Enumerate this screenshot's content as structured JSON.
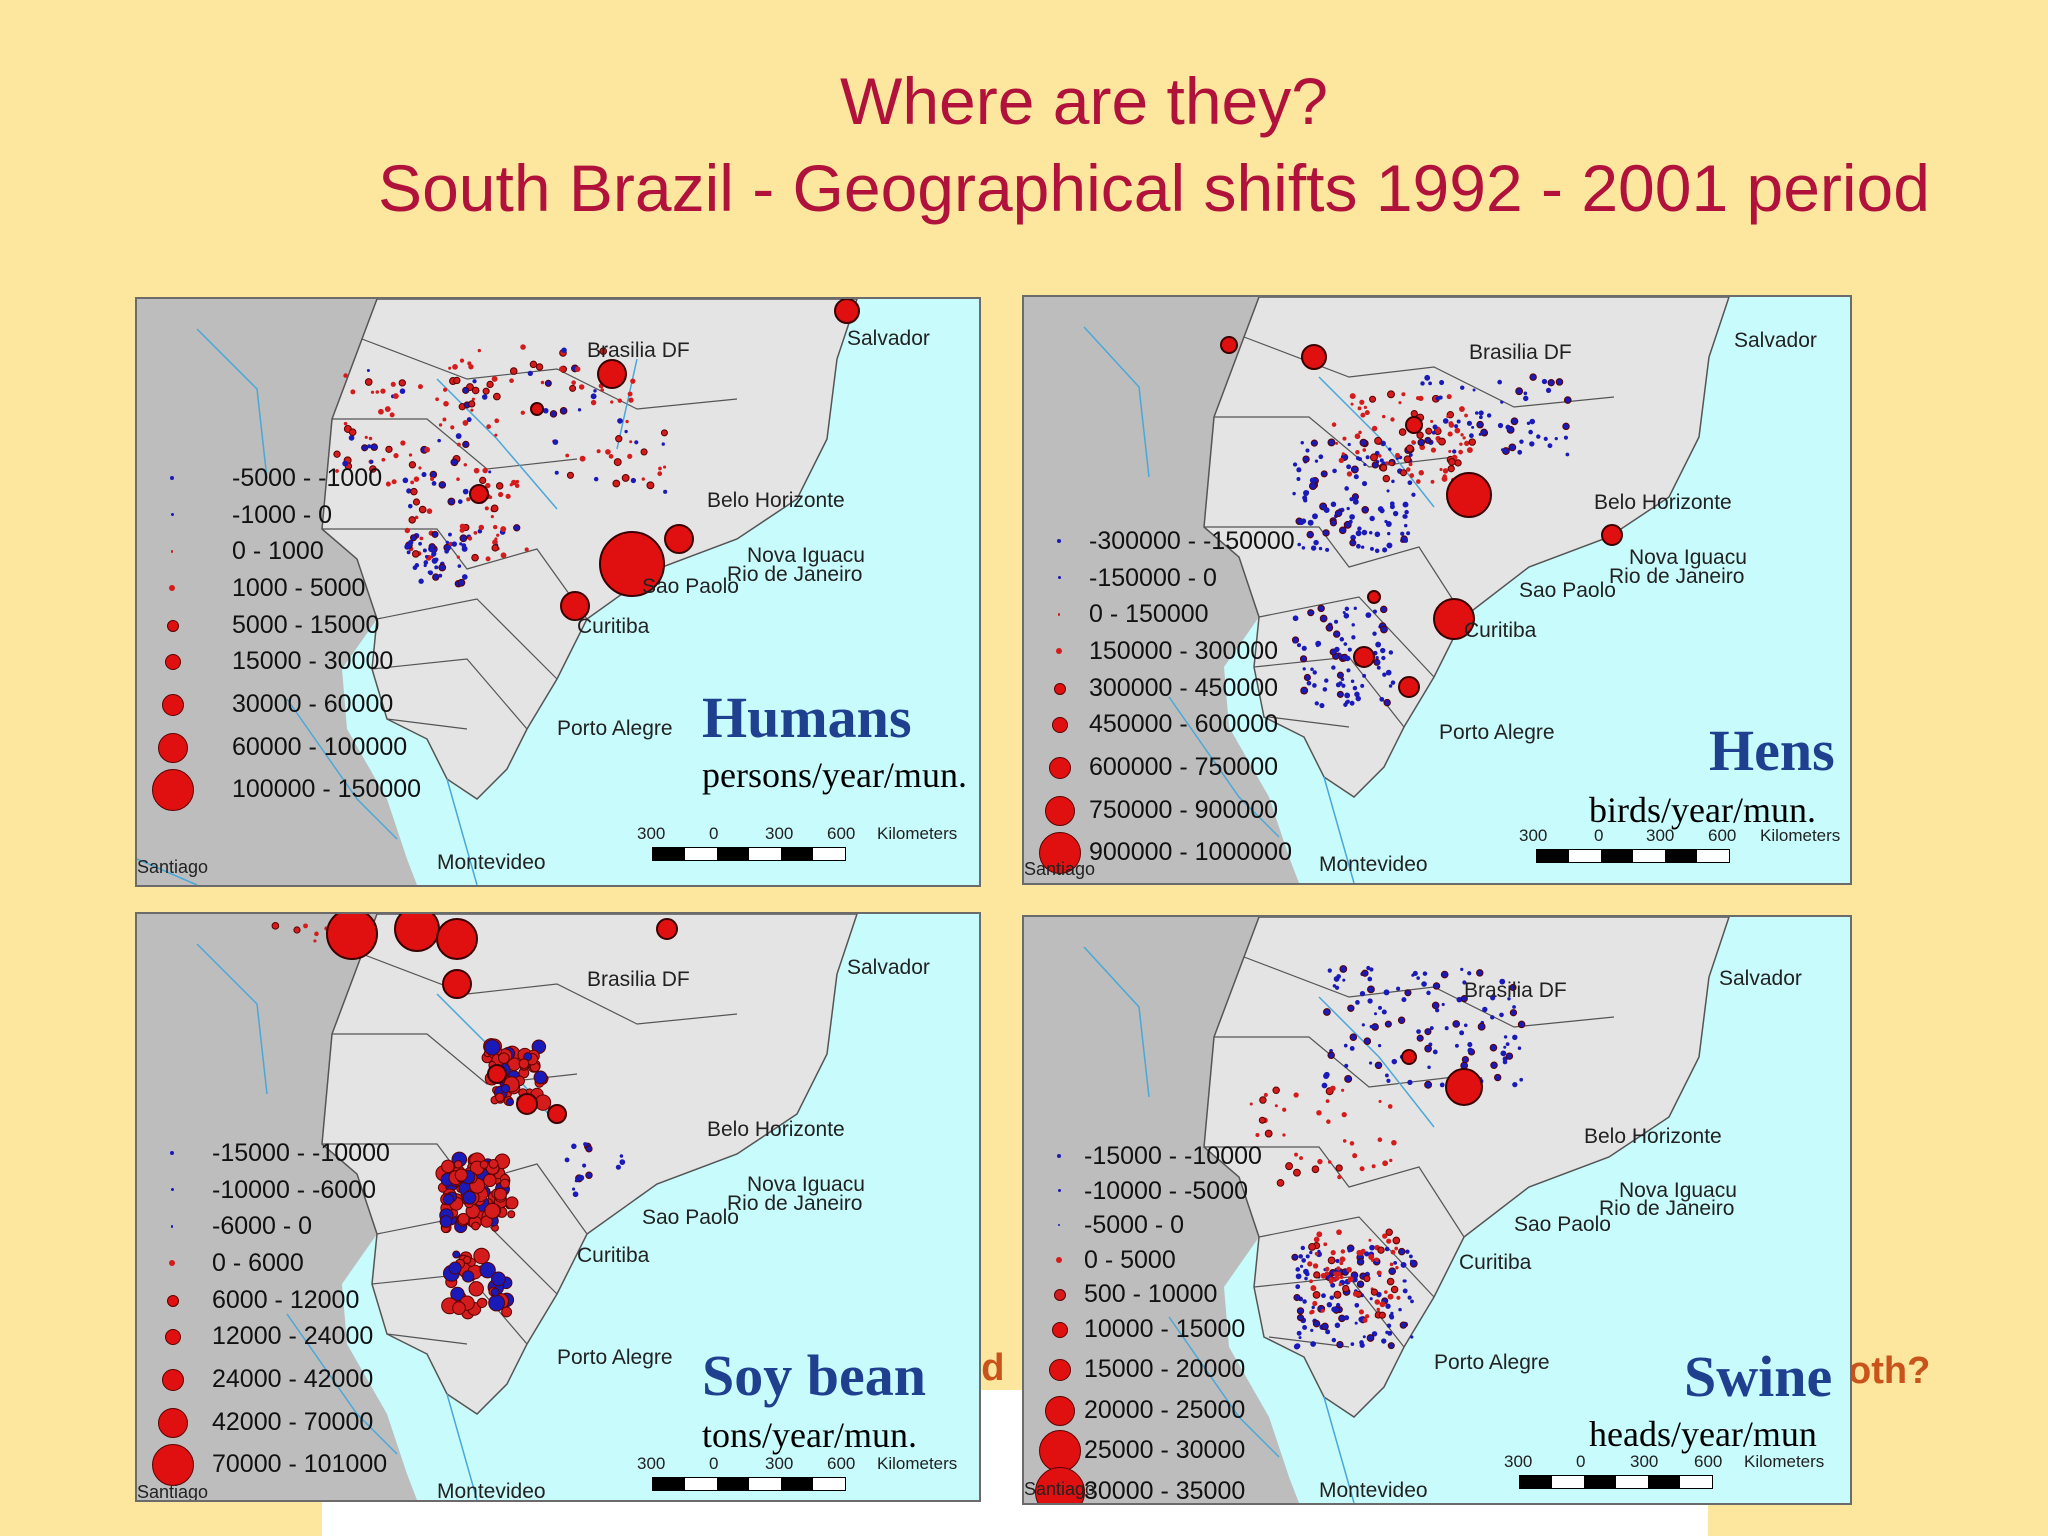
{
  "title": {
    "line1": "Where are they?",
    "line2": "South Brazil - Geographical shifts  1992 - 2001 period"
  },
  "behind_text": {
    "left_fragment": "nd",
    "right_fragment": "oth?"
  },
  "cities": {
    "salvador": "Salvador",
    "brasilia": "Brasilia DF",
    "belo": "Belo Horizonte",
    "nova": "Nova Iguacu",
    "rio": "Rio de Janeiro",
    "sao": "Sao Paolo",
    "curitiba": "Curitiba",
    "porto": "Porto Alegre",
    "montevideo": "Montevideo",
    "santiago": "Santiago"
  },
  "scale": {
    "l300": "300",
    "l0": "0",
    "r300": "300",
    "r600": "600",
    "unit": "Kilometers"
  },
  "maps": [
    {
      "id": "humans",
      "title": "Humans",
      "unit": "persons/year/mun.",
      "legend": [
        {
          "label": "-5000 - -1000",
          "color": "#1a1ab8"
        },
        {
          "label": "-1000 - 0",
          "color": "#1a1ab8"
        },
        {
          "label": "0 - 1000",
          "color": "#d41c1c"
        },
        {
          "label": "1000 - 5000",
          "color": "#d41c1c"
        },
        {
          "label": "5000 - 15000",
          "color": "#e01010"
        },
        {
          "label": "15000 - 30000",
          "color": "#e01010"
        },
        {
          "label": "30000 - 60000",
          "color": "#e01010"
        },
        {
          "label": "60000 - 100000",
          "color": "#e01010"
        },
        {
          "label": "100000 - 150000",
          "color": "#e01010"
        }
      ]
    },
    {
      "id": "hens",
      "title": "Hens",
      "unit": "birds/year/mun.",
      "legend": [
        {
          "label": "-300000 - -150000",
          "color": "#1a1ab8"
        },
        {
          "label": "-150000 - 0",
          "color": "#1a1ab8"
        },
        {
          "label": "0 - 150000",
          "color": "#d41c1c"
        },
        {
          "label": "150000 - 300000",
          "color": "#d41c1c"
        },
        {
          "label": "300000 - 450000",
          "color": "#e01010"
        },
        {
          "label": "450000 - 600000",
          "color": "#e01010"
        },
        {
          "label": "600000 - 750000",
          "color": "#e01010"
        },
        {
          "label": "750000 - 900000",
          "color": "#e01010"
        },
        {
          "label": "900000 - 1000000",
          "color": "#e01010"
        }
      ]
    },
    {
      "id": "soy",
      "title": "Soy bean",
      "unit": "tons/year/mun.",
      "legend": [
        {
          "label": "-15000 - -10000",
          "color": "#1a1ab8"
        },
        {
          "label": "-10000 - -6000",
          "color": "#1a1ab8"
        },
        {
          "label": "-6000 - 0",
          "color": "#1a1ab8"
        },
        {
          "label": "0 - 6000",
          "color": "#d41c1c"
        },
        {
          "label": "6000 - 12000",
          "color": "#e01010"
        },
        {
          "label": "12000 - 24000",
          "color": "#e01010"
        },
        {
          "label": "24000 - 42000",
          "color": "#e01010"
        },
        {
          "label": "42000 - 70000",
          "color": "#e01010"
        },
        {
          "label": "70000 - 101000",
          "color": "#e01010"
        }
      ]
    },
    {
      "id": "swine",
      "title": "Swine",
      "unit": "heads/year/mun",
      "legend": [
        {
          "label": "-15000 - -10000",
          "color": "#1a1ab8"
        },
        {
          "label": "-10000 - -5000",
          "color": "#1a1ab8"
        },
        {
          "label": "-5000 - 0",
          "color": "#1a1ab8"
        },
        {
          "label": "0 - 5000",
          "color": "#d41c1c"
        },
        {
          "label": "500 - 10000",
          "color": "#d41c1c"
        },
        {
          "label": "10000 - 15000",
          "color": "#e01010"
        },
        {
          "label": "15000 - 20000",
          "color": "#e01010"
        },
        {
          "label": "20000 - 25000",
          "color": "#e01010"
        },
        {
          "label": "25000 - 30000",
          "color": "#e01010"
        },
        {
          "label": "30000 - 35000",
          "color": "#e01010"
        }
      ]
    }
  ],
  "colors": {
    "background": "#fde69d",
    "title": "#b0123c",
    "ocean": "#c8fbfb",
    "land": "#e4e4e4",
    "foreign": "#bdbdbd",
    "map_title": "#1f3f8f"
  }
}
